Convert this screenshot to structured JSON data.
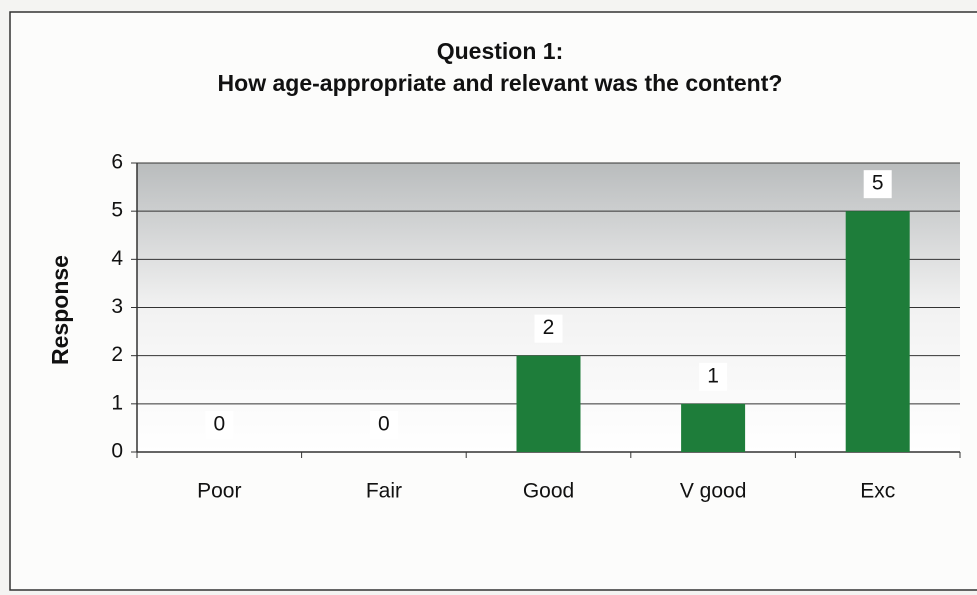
{
  "chart_data": {
    "type": "bar",
    "title": "Question 1:",
    "subtitle": "How age-appropriate and relevant was the content?",
    "y_label": "Response",
    "categories": [
      "Poor",
      "Fair",
      "Good",
      "V good",
      "Exc"
    ],
    "values": [
      0,
      0,
      2,
      1,
      5
    ],
    "color": "#1e7d3a",
    "ylim": [
      0,
      6
    ],
    "yticks": [
      0,
      1,
      2,
      3,
      4,
      5,
      6
    ],
    "grid": true
  }
}
